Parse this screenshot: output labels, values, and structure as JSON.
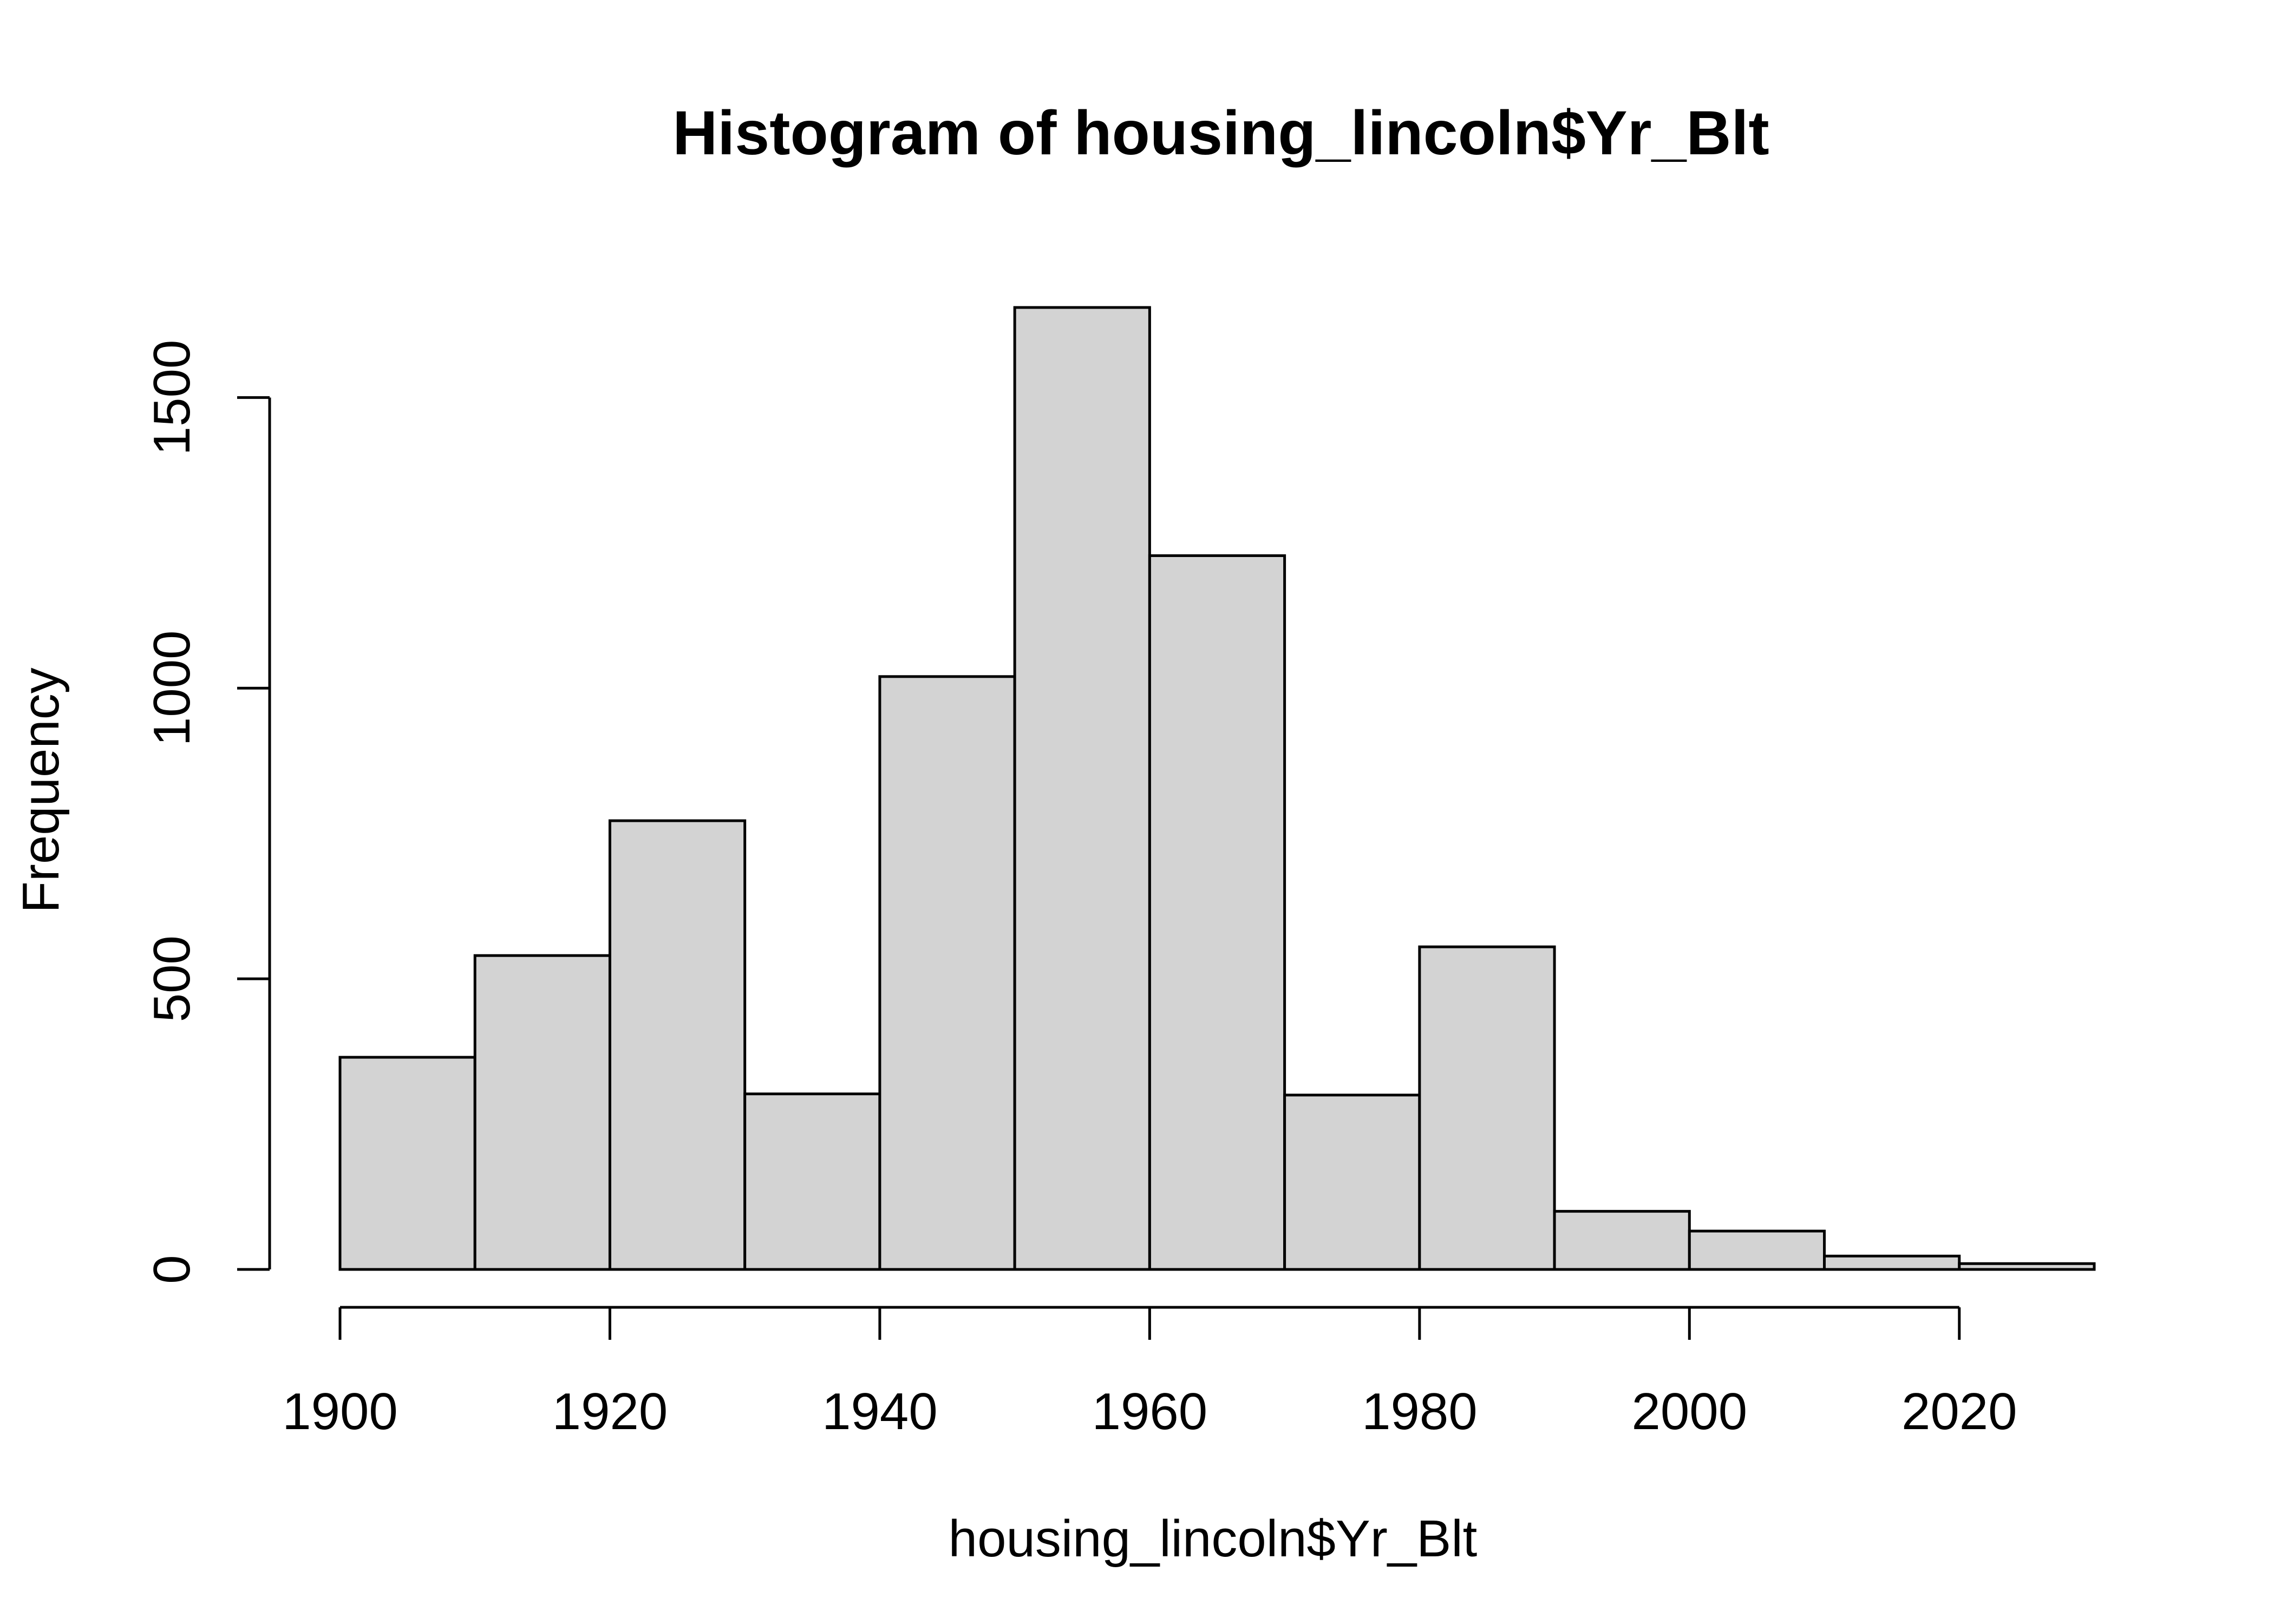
{
  "chart_data": {
    "type": "bar",
    "subtype": "histogram",
    "title": "Histogram of housing_lincoln$Yr_Blt",
    "xlabel": "housing_lincoln$Yr_Blt",
    "ylabel": "Frequency",
    "bins": [
      {
        "from": 1900,
        "to": 1910,
        "value": 365
      },
      {
        "from": 1910,
        "to": 1920,
        "value": 540
      },
      {
        "from": 1920,
        "to": 1930,
        "value": 772
      },
      {
        "from": 1930,
        "to": 1940,
        "value": 302
      },
      {
        "from": 1940,
        "to": 1950,
        "value": 1020
      },
      {
        "from": 1950,
        "to": 1960,
        "value": 1655
      },
      {
        "from": 1960,
        "to": 1970,
        "value": 1228
      },
      {
        "from": 1970,
        "to": 1980,
        "value": 300
      },
      {
        "from": 1980,
        "to": 1990,
        "value": 555
      },
      {
        "from": 1990,
        "to": 2000,
        "value": 100
      },
      {
        "from": 2000,
        "to": 2010,
        "value": 66
      },
      {
        "from": 2010,
        "to": 2020,
        "value": 23
      },
      {
        "from": 2020,
        "to": 2030,
        "value": 10
      }
    ],
    "xlim": [
      1900,
      2030
    ],
    "ylim": [
      0,
      1655
    ],
    "x_ticks": [
      1900,
      1920,
      1940,
      1960,
      1980,
      2000,
      2020
    ],
    "y_ticks": [
      0,
      500,
      1000,
      1500
    ],
    "colors": {
      "bar_fill": "#d3d3d3",
      "bar_stroke": "#000000"
    },
    "grid": false
  }
}
